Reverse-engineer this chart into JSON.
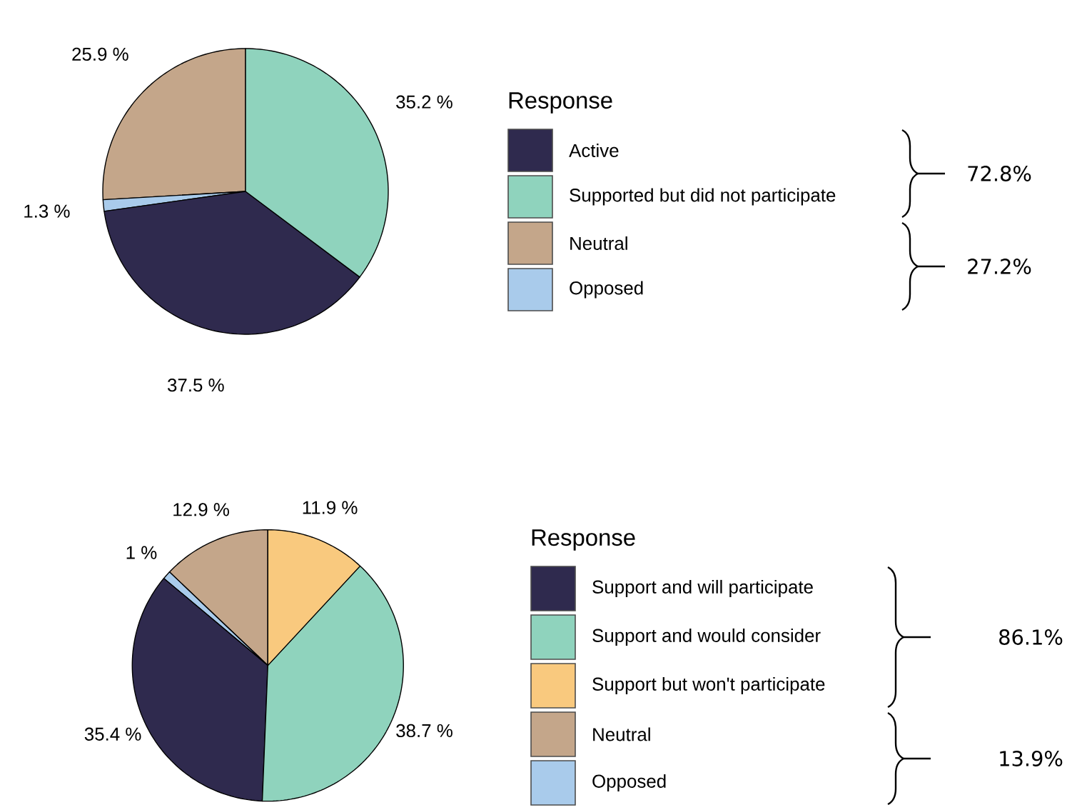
{
  "chart_data": [
    {
      "type": "pie",
      "legend_title": "Response",
      "legend": "right",
      "categories": [
        "Active",
        "Supported but did not participate",
        "Neutral",
        "Opposed"
      ],
      "values": [
        37.5,
        35.2,
        25.9,
        1.3
      ],
      "colors": [
        "#2f2a4e",
        "#8fd3bd",
        "#c4a68a",
        "#a9cbeb"
      ],
      "value_labels": [
        "37.5 %",
        "35.2 %",
        "25.9 %",
        "1.3 %"
      ],
      "annotations": [
        "72.8%",
        "27.2%"
      ]
    },
    {
      "type": "pie",
      "legend_title": "Response",
      "legend": "right",
      "categories": [
        "Support and will participate",
        "Support and would consider",
        "Support but won't participate",
        "Neutral",
        "Opposed"
      ],
      "values": [
        35.4,
        38.7,
        11.9,
        12.9,
        1
      ],
      "colors": [
        "#2f2a4e",
        "#8fd3bd",
        "#f9c97e",
        "#c4a68a",
        "#a9cbeb"
      ],
      "value_labels": [
        "35.4 %",
        "38.7 %",
        "11.9 %",
        "12.9 %",
        "1 %"
      ],
      "annotations": [
        "86.1%",
        "13.9%"
      ]
    }
  ]
}
